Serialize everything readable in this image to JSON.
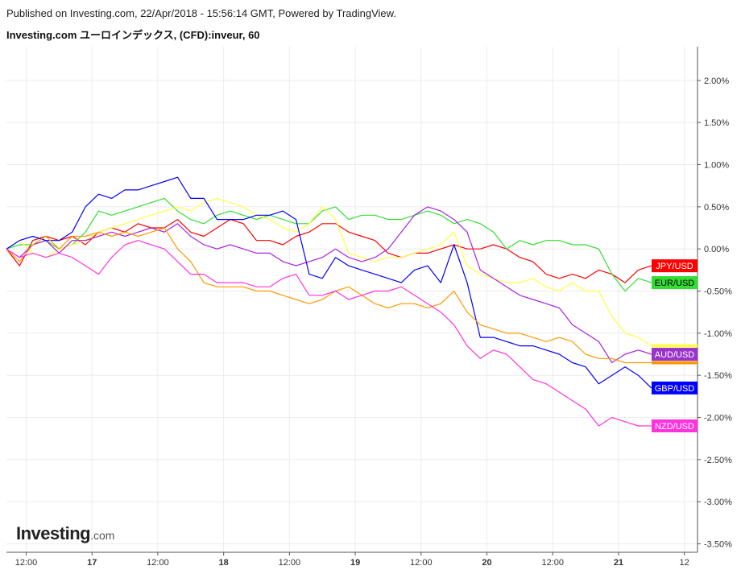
{
  "header": {
    "published": "Published on Investing.com, 22/Apr/2018 - 15:56:14 GMT, Powered by TradingView.",
    "title": "Investing.com ユーロインデックス, (CFD):inveur, 60"
  },
  "logo": {
    "brand": "Investing",
    "suffix": ".com"
  },
  "chart_data": {
    "type": "line",
    "title": "Investing.com ユーロインデックス, (CFD):inveur, 60",
    "x_ticks": [
      "12:00",
      "17",
      "12:00",
      "18",
      "12:00",
      "19",
      "12:00",
      "20",
      "12:00",
      "21",
      "12"
    ],
    "x_range": [
      0,
      10.5
    ],
    "y_ticks": [
      "2.00%",
      "1.50%",
      "1.00%",
      "0.50%",
      "0.00%",
      "-0.50%",
      "-1.00%",
      "-1.50%",
      "-2.00%",
      "-2.50%",
      "-3.00%",
      "-3.50%"
    ],
    "y_range": [
      -3.6,
      2.4
    ],
    "y_unit": "%",
    "grid": true,
    "series": [
      {
        "name": "JPY/USD",
        "color": "#ff0000",
        "label_color": "#ff0000",
        "x": [
          0.0,
          0.2,
          0.4,
          0.6,
          0.8,
          1.0,
          1.2,
          1.4,
          1.6,
          1.8,
          2.0,
          2.2,
          2.4,
          2.6,
          2.8,
          3.0,
          3.2,
          3.4,
          3.6,
          3.8,
          4.0,
          4.2,
          4.4,
          4.6,
          4.8,
          5.0,
          5.2,
          5.4,
          5.6,
          5.8,
          6.0,
          6.2,
          6.4,
          6.6,
          6.8,
          7.0,
          7.2,
          7.4,
          7.6,
          7.8,
          8.0,
          8.2,
          8.4,
          8.6,
          8.8,
          9.0,
          9.2,
          9.4,
          9.6,
          9.8
        ],
        "values": [
          0.0,
          -0.2,
          0.1,
          0.15,
          0.1,
          0.15,
          0.05,
          0.2,
          0.25,
          0.2,
          0.3,
          0.25,
          0.25,
          0.35,
          0.2,
          0.15,
          0.25,
          0.35,
          0.3,
          0.1,
          0.1,
          0.05,
          0.15,
          0.2,
          0.3,
          0.3,
          0.2,
          0.15,
          0.1,
          -0.05,
          -0.1,
          -0.05,
          -0.05,
          0.0,
          0.05,
          0.0,
          0.0,
          0.05,
          0.0,
          -0.1,
          -0.15,
          -0.3,
          -0.35,
          -0.3,
          -0.35,
          -0.25,
          -0.3,
          -0.4,
          -0.25,
          -0.2
        ]
      },
      {
        "name": "EUR/USD",
        "color": "#33dd33",
        "label_color": "#33dd33",
        "x": [
          0.0,
          0.2,
          0.4,
          0.6,
          0.8,
          1.0,
          1.2,
          1.4,
          1.6,
          1.8,
          2.0,
          2.2,
          2.4,
          2.6,
          2.8,
          3.0,
          3.2,
          3.4,
          3.6,
          3.8,
          4.0,
          4.2,
          4.4,
          4.6,
          4.8,
          5.0,
          5.2,
          5.4,
          5.6,
          5.8,
          6.0,
          6.2,
          6.4,
          6.6,
          6.8,
          7.0,
          7.2,
          7.4,
          7.6,
          7.8,
          8.0,
          8.2,
          8.4,
          8.6,
          8.8,
          9.0,
          9.2,
          9.4,
          9.6,
          9.8
        ],
        "values": [
          0.0,
          0.05,
          0.05,
          0.1,
          0.0,
          0.05,
          0.2,
          0.45,
          0.4,
          0.45,
          0.5,
          0.55,
          0.6,
          0.45,
          0.35,
          0.3,
          0.4,
          0.45,
          0.4,
          0.35,
          0.4,
          0.35,
          0.3,
          0.3,
          0.45,
          0.5,
          0.35,
          0.4,
          0.4,
          0.35,
          0.35,
          0.4,
          0.45,
          0.4,
          0.3,
          0.35,
          0.3,
          0.2,
          0.0,
          0.1,
          0.05,
          0.1,
          0.1,
          0.05,
          0.05,
          0.0,
          -0.3,
          -0.5,
          -0.35,
          -0.4
        ]
      },
      {
        "name": "",
        "color": "#ffff44",
        "label_color": "#ffff44",
        "x": [
          0.0,
          0.2,
          0.4,
          0.6,
          0.8,
          1.0,
          1.2,
          1.4,
          1.6,
          1.8,
          2.0,
          2.2,
          2.4,
          2.6,
          2.8,
          3.0,
          3.2,
          3.4,
          3.6,
          3.8,
          4.0,
          4.2,
          4.4,
          4.6,
          4.8,
          5.0,
          5.2,
          5.4,
          5.6,
          5.8,
          6.0,
          6.2,
          6.4,
          6.6,
          6.8,
          7.0,
          7.2,
          7.4,
          7.6,
          7.8,
          8.0,
          8.2,
          8.4,
          8.6,
          8.8,
          9.0,
          9.2,
          9.4,
          9.6,
          9.8
        ],
        "values": [
          0.0,
          0.1,
          -0.05,
          -0.1,
          0.0,
          0.05,
          0.1,
          0.2,
          0.25,
          0.3,
          0.35,
          0.4,
          0.45,
          0.5,
          0.45,
          0.55,
          0.6,
          0.55,
          0.5,
          0.4,
          0.35,
          0.25,
          0.2,
          0.3,
          0.5,
          0.35,
          -0.05,
          -0.1,
          -0.15,
          -0.1,
          -0.1,
          -0.05,
          0.0,
          0.05,
          0.2,
          -0.2,
          -0.3,
          -0.35,
          -0.4,
          -0.4,
          -0.35,
          -0.45,
          -0.5,
          -0.4,
          -0.5,
          -0.5,
          -0.8,
          -1.0,
          -1.05,
          -1.15
        ]
      },
      {
        "name": "AUD/USD",
        "color": "#aa22dd",
        "label_color": "#9933cc",
        "x": [
          0.0,
          0.2,
          0.4,
          0.6,
          0.8,
          1.0,
          1.2,
          1.4,
          1.6,
          1.8,
          2.0,
          2.2,
          2.4,
          2.6,
          2.8,
          3.0,
          3.2,
          3.4,
          3.6,
          3.8,
          4.0,
          4.2,
          4.4,
          4.6,
          4.8,
          5.0,
          5.2,
          5.4,
          5.6,
          5.8,
          6.0,
          6.2,
          6.4,
          6.6,
          6.8,
          7.0,
          7.2,
          7.4,
          7.6,
          7.8,
          8.0,
          8.2,
          8.4,
          8.6,
          8.8,
          9.0,
          9.2,
          9.4,
          9.6,
          9.8
        ],
        "values": [
          0.0,
          -0.1,
          0.05,
          0.1,
          -0.05,
          0.1,
          0.1,
          0.15,
          0.2,
          0.15,
          0.2,
          0.25,
          0.2,
          0.3,
          0.15,
          0.05,
          0.0,
          0.05,
          0.0,
          -0.05,
          -0.05,
          -0.15,
          -0.2,
          -0.15,
          -0.1,
          0.0,
          -0.1,
          -0.15,
          -0.1,
          0.0,
          0.2,
          0.4,
          0.5,
          0.45,
          0.35,
          0.2,
          -0.25,
          -0.35,
          -0.45,
          -0.55,
          -0.6,
          -0.65,
          -0.7,
          -0.9,
          -1.0,
          -1.1,
          -1.35,
          -1.25,
          -1.2,
          -1.25
        ]
      },
      {
        "name": "GBP/USD",
        "color": "#0000ff",
        "label_color": "#0000ff",
        "x": [
          0.0,
          0.2,
          0.4,
          0.6,
          0.8,
          1.0,
          1.2,
          1.4,
          1.6,
          1.8,
          2.0,
          2.2,
          2.4,
          2.6,
          2.8,
          3.0,
          3.2,
          3.4,
          3.6,
          3.8,
          4.0,
          4.2,
          4.4,
          4.6,
          4.8,
          5.0,
          5.2,
          5.4,
          5.6,
          5.8,
          6.0,
          6.2,
          6.4,
          6.6,
          6.8,
          7.0,
          7.2,
          7.4,
          7.6,
          7.8,
          8.0,
          8.2,
          8.4,
          8.6,
          8.8,
          9.0,
          9.2,
          9.4,
          9.6,
          9.8
        ],
        "values": [
          0.0,
          0.1,
          0.15,
          0.1,
          0.1,
          0.2,
          0.5,
          0.65,
          0.6,
          0.7,
          0.7,
          0.75,
          0.8,
          0.85,
          0.6,
          0.6,
          0.35,
          0.35,
          0.35,
          0.4,
          0.4,
          0.45,
          0.35,
          -0.3,
          -0.35,
          -0.1,
          -0.2,
          -0.25,
          -0.3,
          -0.35,
          -0.4,
          -0.25,
          -0.2,
          -0.4,
          0.05,
          -0.4,
          -1.05,
          -1.05,
          -1.1,
          -1.15,
          -1.15,
          -1.2,
          -1.25,
          -1.35,
          -1.4,
          -1.6,
          -1.5,
          -1.4,
          -1.5,
          -1.65
        ]
      },
      {
        "name": "",
        "color": "#ff9900",
        "label_color": "#ff9900",
        "x": [
          0.0,
          0.2,
          0.4,
          0.6,
          0.8,
          1.0,
          1.2,
          1.4,
          1.6,
          1.8,
          2.0,
          2.2,
          2.4,
          2.6,
          2.8,
          3.0,
          3.2,
          3.4,
          3.6,
          3.8,
          4.0,
          4.2,
          4.4,
          4.6,
          4.8,
          5.0,
          5.2,
          5.4,
          5.6,
          5.8,
          6.0,
          6.2,
          6.4,
          6.6,
          6.8,
          7.0,
          7.2,
          7.4,
          7.6,
          7.8,
          8.0,
          8.2,
          8.4,
          8.6,
          8.8,
          9.0,
          9.2,
          9.4,
          9.6,
          9.8
        ],
        "values": [
          0.0,
          -0.15,
          0.05,
          0.15,
          0.0,
          0.15,
          0.15,
          0.2,
          0.15,
          0.2,
          0.15,
          0.2,
          0.25,
          0.0,
          -0.15,
          -0.4,
          -0.45,
          -0.45,
          -0.45,
          -0.5,
          -0.5,
          -0.55,
          -0.6,
          -0.65,
          -0.6,
          -0.5,
          -0.45,
          -0.55,
          -0.65,
          -0.7,
          -0.65,
          -0.65,
          -0.7,
          -0.65,
          -0.5,
          -0.75,
          -0.9,
          -0.95,
          -1.0,
          -1.0,
          -1.05,
          -1.1,
          -1.05,
          -1.1,
          -1.25,
          -1.3,
          -1.3,
          -1.35,
          -1.35,
          -1.35
        ]
      },
      {
        "name": "NZD/USD",
        "color": "#ff33dd",
        "label_color": "#ff33dd",
        "x": [
          0.0,
          0.2,
          0.4,
          0.6,
          0.8,
          1.0,
          1.2,
          1.4,
          1.6,
          1.8,
          2.0,
          2.2,
          2.4,
          2.6,
          2.8,
          3.0,
          3.2,
          3.4,
          3.6,
          3.8,
          4.0,
          4.2,
          4.4,
          4.6,
          4.8,
          5.0,
          5.2,
          5.4,
          5.6,
          5.8,
          6.0,
          6.2,
          6.4,
          6.6,
          6.8,
          7.0,
          7.2,
          7.4,
          7.6,
          7.8,
          8.0,
          8.2,
          8.4,
          8.6,
          8.8,
          9.0,
          9.2,
          9.4,
          9.6,
          9.8
        ],
        "values": [
          0.0,
          -0.1,
          -0.05,
          -0.1,
          -0.05,
          -0.1,
          -0.2,
          -0.3,
          -0.1,
          0.05,
          0.1,
          0.05,
          0.0,
          -0.15,
          -0.3,
          -0.3,
          -0.4,
          -0.4,
          -0.4,
          -0.45,
          -0.45,
          -0.35,
          -0.3,
          -0.55,
          -0.55,
          -0.5,
          -0.6,
          -0.55,
          -0.5,
          -0.5,
          -0.45,
          -0.55,
          -0.65,
          -0.75,
          -0.9,
          -1.15,
          -1.3,
          -1.2,
          -1.25,
          -1.4,
          -1.55,
          -1.6,
          -1.7,
          -1.8,
          -1.9,
          -2.1,
          -2.0,
          -2.05,
          -2.1,
          -2.1
        ]
      }
    ]
  }
}
